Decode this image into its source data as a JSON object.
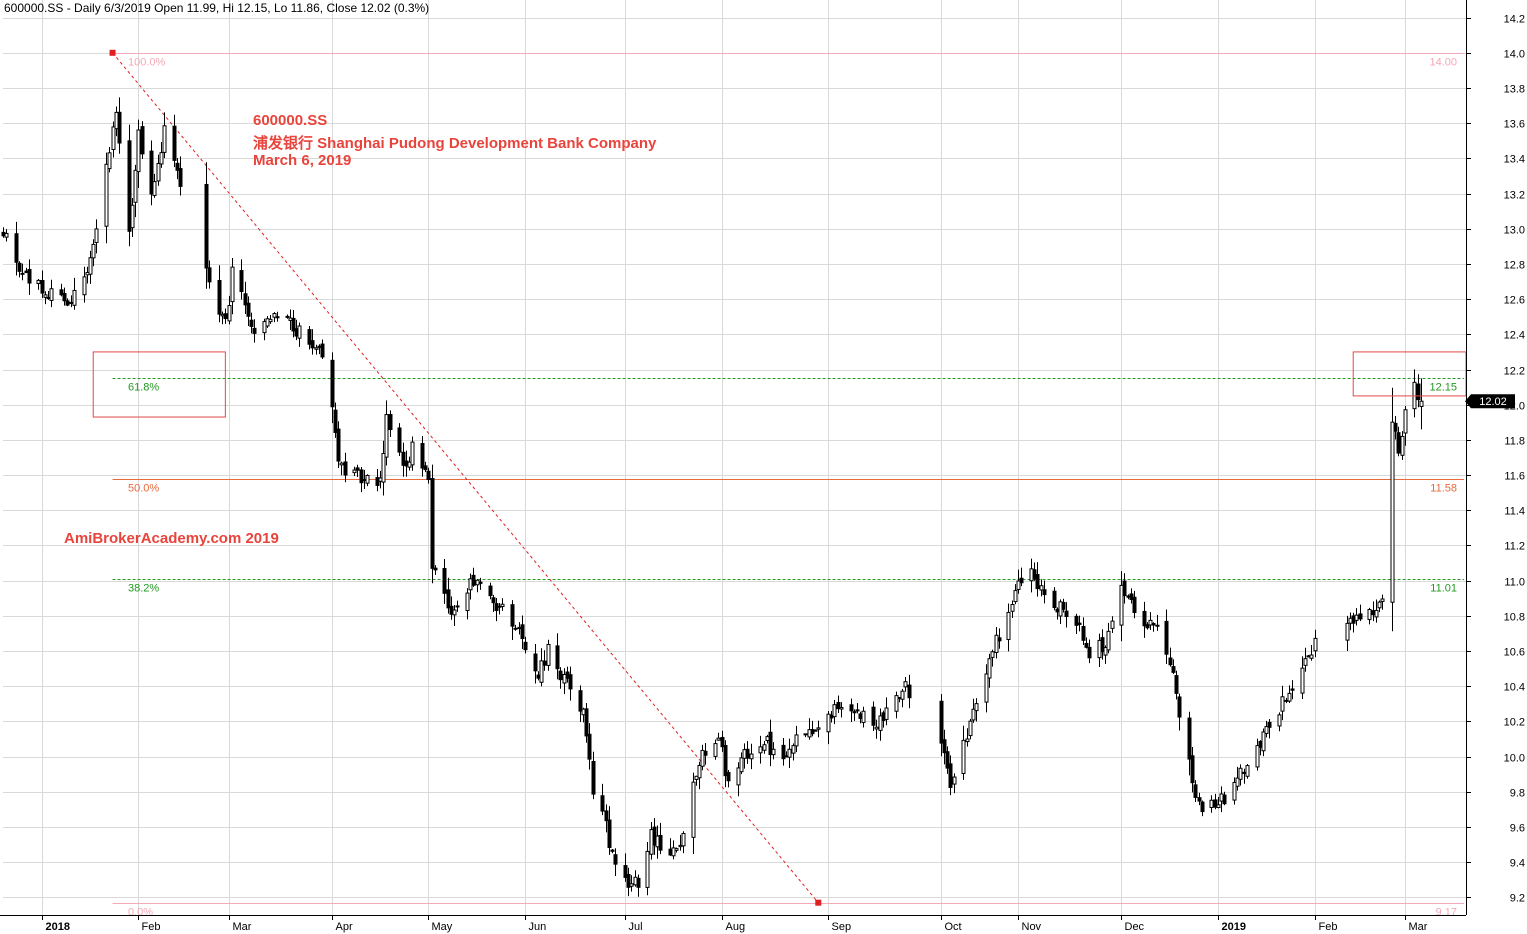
{
  "header": {
    "text": "600000.SS - Daily 6/3/2019 Open 11.99, Hi 12.15, Lo 11.86, Close 12.02 (0.3%)"
  },
  "annotation": {
    "ticker": "600000.SS",
    "company": "浦发银行  Shanghai Pudong Development Bank Company",
    "date": "March 6, 2019"
  },
  "watermark": "AmiBrokerAcademy.com  2019",
  "chart_data": {
    "type": "candlestick",
    "ylim": [
      9.1,
      14.3
    ],
    "yticks": [
      9.2,
      9.4,
      9.6,
      9.8,
      10.0,
      10.2,
      10.4,
      10.6,
      10.8,
      11.0,
      11.2,
      11.4,
      11.6,
      11.8,
      12.0,
      12.2,
      12.4,
      12.6,
      12.8,
      13.0,
      13.2,
      13.4,
      13.6,
      13.8,
      14.0,
      14.2
    ],
    "ytick_labels": [
      "9.2",
      "9.4",
      "9.6",
      "9.8",
      "10.0",
      "10.2",
      "10.4",
      "10.6",
      "10.8",
      "11.0",
      "11.2",
      "11.4",
      "11.6",
      "11.8",
      "12.0",
      "12.2",
      "12.4",
      "12.6",
      "12.8",
      "13.0",
      "13.2",
      "13.4",
      "13.6",
      "13.8",
      "14.0",
      "14.2"
    ],
    "xticks": [
      {
        "label": "2018",
        "date": "2018-01-02",
        "bold": true
      },
      {
        "label": "Feb",
        "date": "2018-02-01",
        "bold": false
      },
      {
        "label": "Mar",
        "date": "2018-03-01",
        "bold": false
      },
      {
        "label": "Apr",
        "date": "2018-04-02",
        "bold": false
      },
      {
        "label": "May",
        "date": "2018-05-02",
        "bold": false
      },
      {
        "label": "Jun",
        "date": "2018-06-01",
        "bold": false
      },
      {
        "label": "Jul",
        "date": "2018-07-02",
        "bold": false
      },
      {
        "label": "Aug",
        "date": "2018-08-01",
        "bold": false
      },
      {
        "label": "Sep",
        "date": "2018-09-03",
        "bold": false
      },
      {
        "label": "Oct",
        "date": "2018-10-08",
        "bold": false
      },
      {
        "label": "Nov",
        "date": "2018-11-01",
        "bold": false
      },
      {
        "label": "Dec",
        "date": "2018-12-03",
        "bold": false
      },
      {
        "label": "2019",
        "date": "2019-01-02",
        "bold": true
      },
      {
        "label": "Feb",
        "date": "2019-02-01",
        "bold": false
      },
      {
        "label": "Mar",
        "date": "2019-03-01",
        "bold": false
      }
    ],
    "anchors": [
      {
        "date": "2017-12-21",
        "close": 13.0
      },
      {
        "date": "2017-12-27",
        "close": 12.75
      },
      {
        "date": "2018-01-02",
        "close": 12.65
      },
      {
        "date": "2018-01-10",
        "close": 12.6
      },
      {
        "date": "2018-01-15",
        "close": 12.7
      },
      {
        "date": "2018-01-19",
        "close": 13.0
      },
      {
        "date": "2018-01-23",
        "close": 13.45
      },
      {
        "date": "2018-01-25",
        "close": 13.65
      },
      {
        "date": "2018-01-29",
        "close": 12.95
      },
      {
        "date": "2018-02-01",
        "close": 13.55
      },
      {
        "date": "2018-02-05",
        "close": 13.2
      },
      {
        "date": "2018-02-09",
        "close": 13.55
      },
      {
        "date": "2018-02-12",
        "close": 13.4
      },
      {
        "date": "2018-02-22",
        "close": 12.75
      },
      {
        "date": "2018-02-28",
        "close": 12.45
      },
      {
        "date": "2018-03-02",
        "close": 12.75
      },
      {
        "date": "2018-03-06",
        "close": 12.55
      },
      {
        "date": "2018-03-09",
        "close": 12.4
      },
      {
        "date": "2018-03-15",
        "close": 12.5
      },
      {
        "date": "2018-03-20",
        "close": 12.45
      },
      {
        "date": "2018-03-27",
        "close": 12.35
      },
      {
        "date": "2018-03-30",
        "close": 12.27
      },
      {
        "date": "2018-04-02",
        "close": 12.0
      },
      {
        "date": "2018-04-04",
        "close": 11.65
      },
      {
        "date": "2018-04-10",
        "close": 11.6
      },
      {
        "date": "2018-04-17",
        "close": 11.55
      },
      {
        "date": "2018-04-19",
        "close": 11.9
      },
      {
        "date": "2018-04-24",
        "close": 11.65
      },
      {
        "date": "2018-04-27",
        "close": 11.75
      },
      {
        "date": "2018-05-02",
        "close": 11.6
      },
      {
        "date": "2018-05-03",
        "close": 11.05
      },
      {
        "date": "2018-05-09",
        "close": 10.85
      },
      {
        "date": "2018-05-15",
        "close": 10.98
      },
      {
        "date": "2018-05-18",
        "close": 11.0
      },
      {
        "date": "2018-05-24",
        "close": 10.85
      },
      {
        "date": "2018-05-30",
        "close": 10.75
      },
      {
        "date": "2018-06-04",
        "close": 10.45
      },
      {
        "date": "2018-06-08",
        "close": 10.6
      },
      {
        "date": "2018-06-13",
        "close": 10.45
      },
      {
        "date": "2018-06-19",
        "close": 10.25
      },
      {
        "date": "2018-06-22",
        "close": 9.8
      },
      {
        "date": "2018-06-26",
        "close": 9.6
      },
      {
        "date": "2018-06-29",
        "close": 9.35
      },
      {
        "date": "2018-07-04",
        "close": 9.25
      },
      {
        "date": "2018-07-06",
        "close": 9.3
      },
      {
        "date": "2018-07-10",
        "close": 9.55
      },
      {
        "date": "2018-07-13",
        "close": 9.5
      },
      {
        "date": "2018-07-17",
        "close": 9.45
      },
      {
        "date": "2018-07-20",
        "close": 9.55
      },
      {
        "date": "2018-07-24",
        "close": 9.9
      },
      {
        "date": "2018-07-27",
        "close": 10.05
      },
      {
        "date": "2018-07-31",
        "close": 10.1
      },
      {
        "date": "2018-08-03",
        "close": 9.85
      },
      {
        "date": "2018-08-08",
        "close": 10.0
      },
      {
        "date": "2018-08-14",
        "close": 10.1
      },
      {
        "date": "2018-08-20",
        "close": 9.95
      },
      {
        "date": "2018-08-24",
        "close": 10.1
      },
      {
        "date": "2018-08-31",
        "close": 10.15
      },
      {
        "date": "2018-09-06",
        "close": 10.3
      },
      {
        "date": "2018-09-12",
        "close": 10.25
      },
      {
        "date": "2018-09-18",
        "close": 10.15
      },
      {
        "date": "2018-09-21",
        "close": 10.3
      },
      {
        "date": "2018-09-27",
        "close": 10.4
      },
      {
        "date": "2018-10-08",
        "close": 10.1
      },
      {
        "date": "2018-10-11",
        "close": 9.85
      },
      {
        "date": "2018-10-16",
        "close": 10.1
      },
      {
        "date": "2018-10-19",
        "close": 10.3
      },
      {
        "date": "2018-10-24",
        "close": 10.6
      },
      {
        "date": "2018-10-29",
        "close": 10.85
      },
      {
        "date": "2018-10-31",
        "close": 10.95
      },
      {
        "date": "2018-11-05",
        "close": 11.1
      },
      {
        "date": "2018-11-09",
        "close": 10.9
      },
      {
        "date": "2018-11-14",
        "close": 10.85
      },
      {
        "date": "2018-11-19",
        "close": 10.75
      },
      {
        "date": "2018-11-23",
        "close": 10.6
      },
      {
        "date": "2018-11-28",
        "close": 10.65
      },
      {
        "date": "2018-12-03",
        "close": 11.0
      },
      {
        "date": "2018-12-06",
        "close": 10.85
      },
      {
        "date": "2018-12-11",
        "close": 10.75
      },
      {
        "date": "2018-12-14",
        "close": 10.7
      },
      {
        "date": "2018-12-18",
        "close": 10.55
      },
      {
        "date": "2018-12-21",
        "close": 10.25
      },
      {
        "date": "2018-12-25",
        "close": 9.85
      },
      {
        "date": "2018-12-28",
        "close": 9.72
      },
      {
        "date": "2019-01-03",
        "close": 9.75
      },
      {
        "date": "2019-01-07",
        "close": 9.85
      },
      {
        "date": "2019-01-11",
        "close": 9.95
      },
      {
        "date": "2019-01-16",
        "close": 10.1
      },
      {
        "date": "2019-01-22",
        "close": 10.3
      },
      {
        "date": "2019-01-25",
        "close": 10.4
      },
      {
        "date": "2019-01-30",
        "close": 10.55
      },
      {
        "date": "2019-02-01",
        "close": 10.65
      },
      {
        "date": "2019-02-12",
        "close": 10.8
      },
      {
        "date": "2019-02-15",
        "close": 10.75
      },
      {
        "date": "2019-02-20",
        "close": 10.85
      },
      {
        "date": "2019-02-22",
        "close": 10.9
      },
      {
        "date": "2019-02-25",
        "close": 11.9
      },
      {
        "date": "2019-02-27",
        "close": 11.75
      },
      {
        "date": "2019-02-28",
        "close": 11.8
      },
      {
        "date": "2019-03-01",
        "close": 12.0
      },
      {
        "date": "2019-03-04",
        "close": 12.1
      },
      {
        "date": "2019-03-05",
        "close": 11.99
      },
      {
        "date": "2019-03-06",
        "close": 12.02
      }
    ],
    "fibonacci": {
      "high": 14.0,
      "low": 9.17,
      "high_date": "2018-01-24",
      "low_date": "2018-08-31",
      "levels": [
        {
          "label": "100.0%",
          "value": 14.0,
          "value_label": "14.00",
          "color": "#f4a8b8",
          "dash": false
        },
        {
          "label": "61.8%",
          "value": 12.15,
          "value_label": "12.15",
          "color": "#229922",
          "dash": true
        },
        {
          "label": "50.0%",
          "value": 11.58,
          "value_label": "11.58",
          "color": "#e66a3a",
          "dash": false
        },
        {
          "label": "38.2%",
          "value": 11.01,
          "value_label": "11.01",
          "color": "#229922",
          "dash": true
        },
        {
          "label": "0.0%",
          "value": 9.17,
          "value_label": "9.17",
          "color": "#f4a8b8",
          "dash": false
        }
      ]
    },
    "last_close": {
      "value": 12.02,
      "label": "12.02"
    },
    "highlight_boxes": [
      {
        "from": "2018-01-18",
        "to": "2018-02-28",
        "top": 12.3,
        "bottom": 11.93
      },
      {
        "from": "2019-02-13",
        "to": "2019-03-20",
        "top": 12.3,
        "bottom": 12.05
      }
    ],
    "colors": {
      "grid": "#d9d9d9",
      "candle": "#000000",
      "fib_diagonal": "#e02020",
      "highlight_box": "#e04848",
      "annotation": "#e8443c"
    },
    "grid": true
  }
}
